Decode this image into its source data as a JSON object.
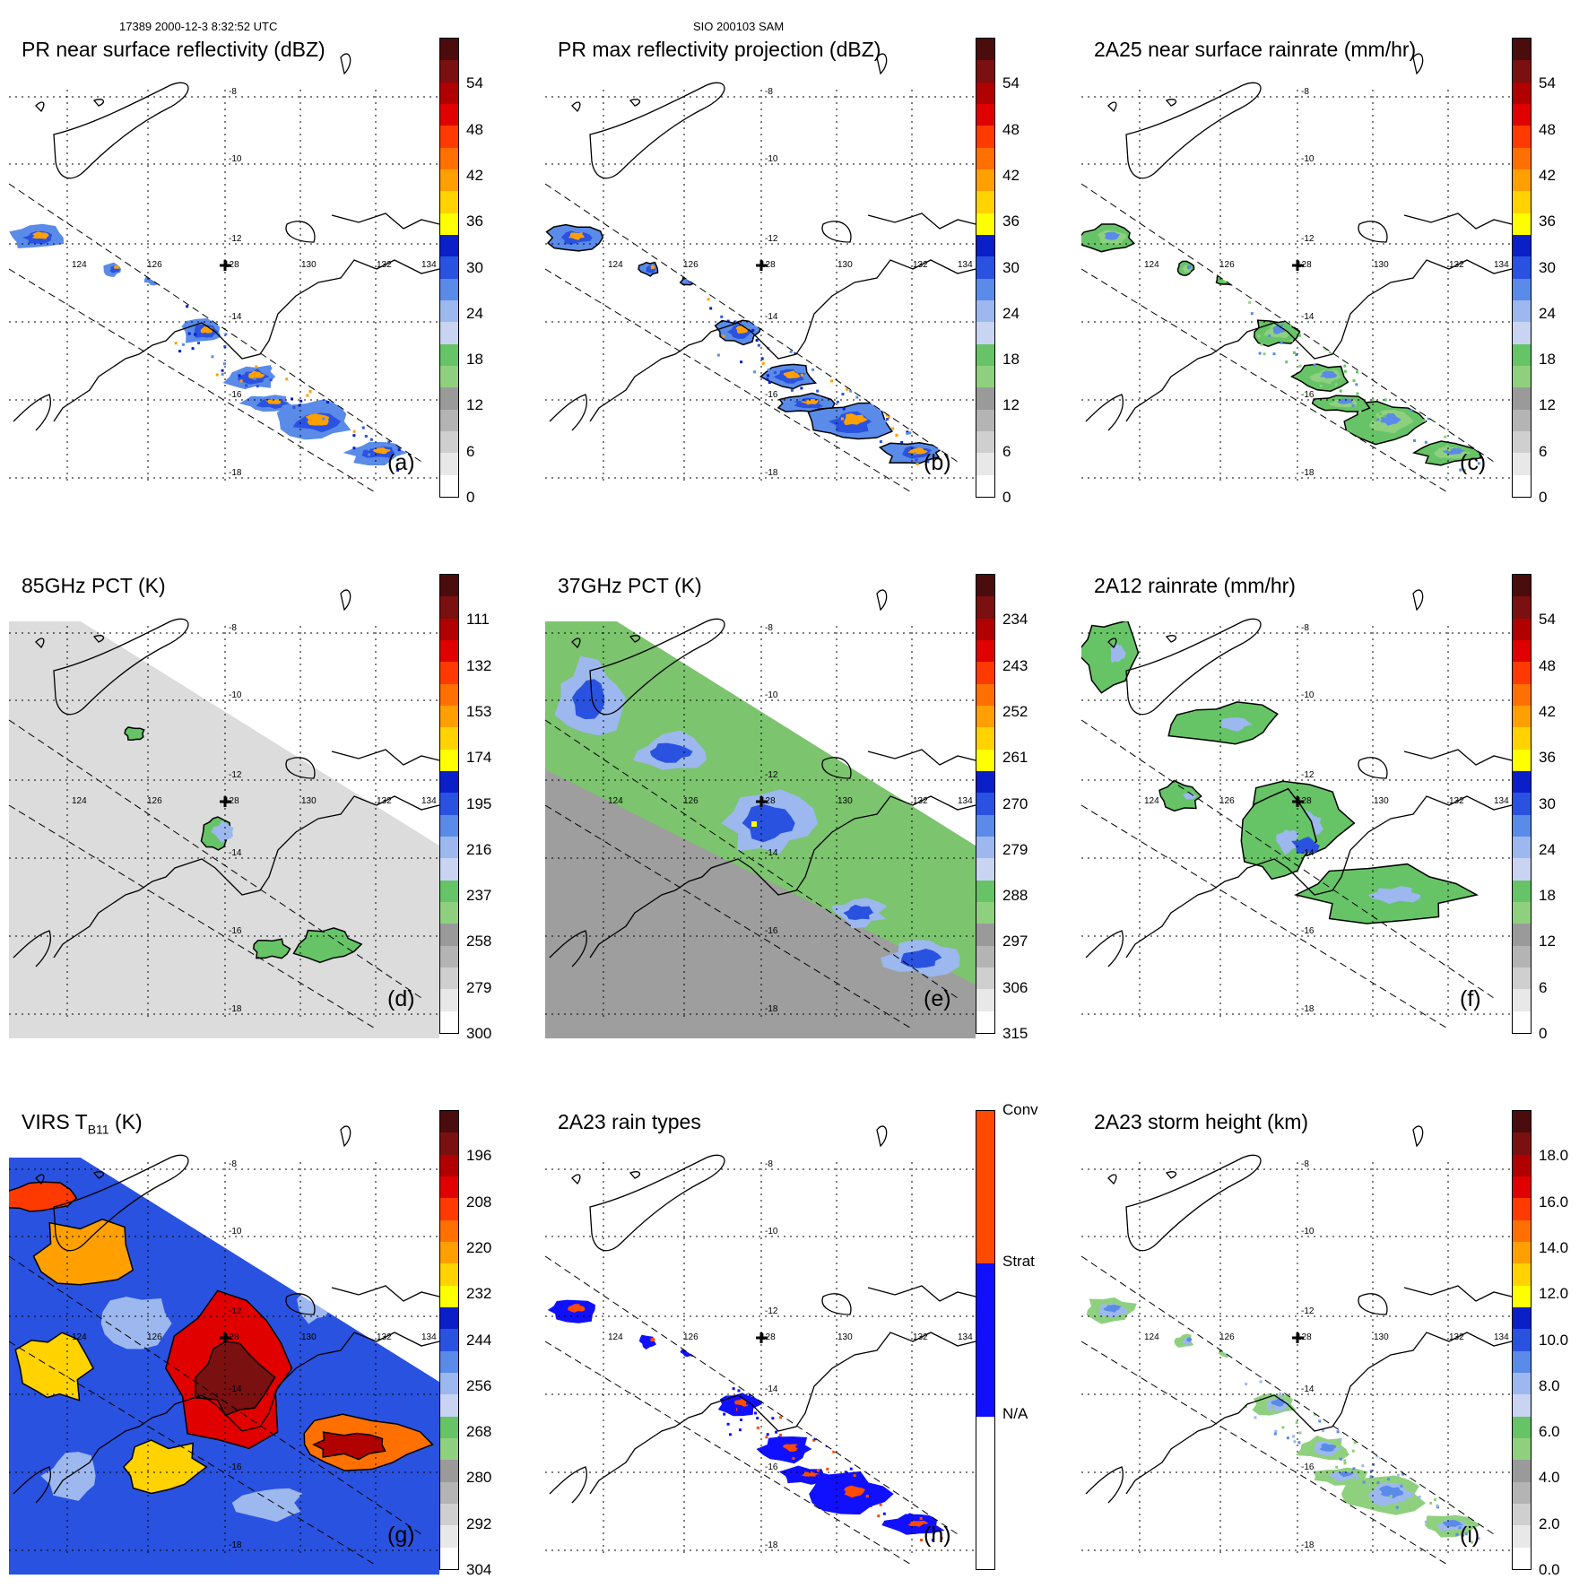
{
  "header": {
    "left": "17389 2000-12-3 8:32:52 UTC",
    "center": "SIO 200103 SAM"
  },
  "map": {
    "lon_labels": [
      "124",
      "126",
      "128",
      "130",
      "132",
      "134"
    ],
    "lat_labels": [
      "-8",
      "-10",
      "-12",
      "-14",
      "-16",
      "-18"
    ]
  },
  "palettes": {
    "rain": [
      "#ffffff",
      "#e8e8e8",
      "#cfcfcf",
      "#b4b4b4",
      "#9a9a9a",
      "#8fd07f",
      "#66c466",
      "#c8d4f2",
      "#9cb8ee",
      "#5a8be8",
      "#2a52e0",
      "#0a1fc8",
      "#ffff00",
      "#ffd200",
      "#ffa000",
      "#ff7000",
      "#ff3a00",
      "#e00000",
      "#b00000",
      "#7a1010",
      "#4a0c0c"
    ],
    "pct": [
      "#ffffff",
      "#e8e8e8",
      "#cfcfcf",
      "#b4b4b4",
      "#9a9a9a",
      "#8fd07f",
      "#66c466",
      "#c8d4f2",
      "#9cb8ee",
      "#5a8be8",
      "#2a52e0",
      "#0a1fc8",
      "#ffff00",
      "#ffd200",
      "#ffa000",
      "#ff7000",
      "#ff3a00",
      "#e00000",
      "#b00000",
      "#7a1010",
      "#4a0c0c"
    ],
    "types": [
      "#ffffff",
      "#ffffff",
      "#ffffff",
      "#1010ff",
      "#1010ff",
      "#1010ff",
      "#ff4a00",
      "#ff4a00",
      "#ff4a00"
    ]
  },
  "panels": [
    {
      "id": "a",
      "title": "PR near surface reflectivity (dBZ)",
      "label": "(a)",
      "bar": "rain",
      "ticks": [
        "54",
        "48",
        "42",
        "36",
        "30",
        "24",
        "18",
        "12",
        "6",
        "0"
      ],
      "fields": "pr"
    },
    {
      "id": "b",
      "title": "PR max reflectivity projection (dBZ)",
      "label": "(b)",
      "bar": "rain",
      "ticks": [
        "54",
        "48",
        "42",
        "36",
        "30",
        "24",
        "18",
        "12",
        "6",
        "0"
      ],
      "fields": "pr"
    },
    {
      "id": "c",
      "title": "2A25 near surface rainrate (mm/hr)",
      "label": "(c)",
      "bar": "rain",
      "ticks": [
        "54",
        "48",
        "42",
        "36",
        "30",
        "24",
        "18",
        "12",
        "6",
        "0"
      ],
      "fields": "pr"
    },
    {
      "id": "d",
      "title": "85GHz PCT (K)",
      "label": "(d)",
      "bar": "pct",
      "ticks": [
        "111",
        "132",
        "153",
        "174",
        "195",
        "216",
        "237",
        "258",
        "279",
        "300"
      ],
      "fields": "tmi"
    },
    {
      "id": "e",
      "title": "37GHz PCT (K)",
      "label": "(e)",
      "bar": "pct",
      "ticks": [
        "234",
        "243",
        "252",
        "261",
        "270",
        "279",
        "288",
        "297",
        "306",
        "315"
      ],
      "fields": "tmi"
    },
    {
      "id": "f",
      "title": "2A12 rainrate (mm/hr)",
      "label": "(f)",
      "bar": "rain",
      "ticks": [
        "54",
        "48",
        "42",
        "36",
        "30",
        "24",
        "18",
        "12",
        "6",
        "0"
      ],
      "fields": "tmi"
    },
    {
      "id": "g",
      "title": "VIRS T",
      "title_sub": "B11",
      "title_end": " (K)",
      "label": "(g)",
      "bar": "rain",
      "ticks": [
        "196",
        "208",
        "220",
        "232",
        "244",
        "256",
        "268",
        "280",
        "292",
        "304"
      ],
      "fields": "virs"
    },
    {
      "id": "h",
      "title": "2A23 rain types",
      "label": "(h)",
      "bar": "types",
      "ticks": [
        "Conv",
        "Strat",
        "N/A"
      ],
      "fields": "pr"
    },
    {
      "id": "i",
      "title": "2A23 storm height (km)",
      "label": "(i)",
      "bar": "rain",
      "ticks": [
        "18.0",
        "16.0",
        "14.0",
        "12.0",
        "10.0",
        "8.0",
        "6.0",
        "4.0",
        "2.0",
        "0.0"
      ],
      "fields": "pr"
    }
  ]
}
